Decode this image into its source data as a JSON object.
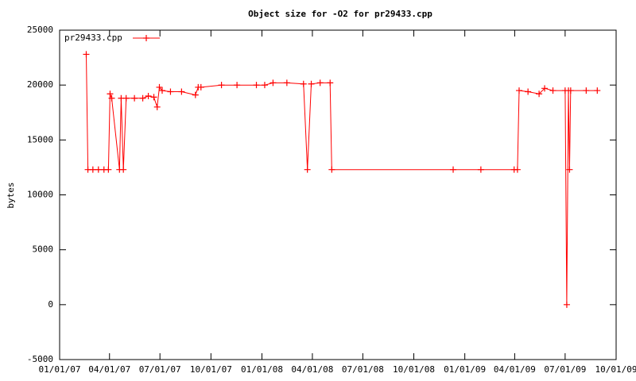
{
  "chart_data": {
    "type": "line",
    "title": "Object size for -O2 for pr29433.cpp",
    "y_label": "bytes",
    "legend": "top-left",
    "grid": false,
    "series": [
      {
        "name": "pr29433.cpp",
        "color": "#ff0000",
        "x": [
          "02/18/07",
          "02/21/07",
          "03/02/07",
          "03/12/07",
          "03/22/07",
          "03/30/07",
          "04/02/07",
          "04/05/07",
          "04/19/07",
          "04/22/07",
          "04/26/07",
          "05/01/07",
          "05/16/07",
          "05/31/07",
          "06/10/07",
          "06/20/07",
          "06/26/07",
          "06/30/07",
          "07/05/07",
          "07/20/07",
          "08/09/07",
          "09/03/07",
          "09/08/07",
          "09/13/07",
          "10/20/07",
          "11/17/07",
          "12/22/07",
          "01/06/08",
          "01/21/08",
          "02/15/08",
          "03/16/08",
          "03/23/08",
          "03/30/08",
          "04/15/08",
          "05/03/08",
          "05/06/08",
          "12/11/08",
          "01/30/09",
          "03/31/09",
          "04/06/09",
          "04/09/09",
          "04/25/09",
          "05/15/09",
          "05/25/09",
          "06/09/09",
          "07/01/09",
          "07/04/09",
          "07/07/09",
          "07/09/09",
          "07/11/09",
          "08/08/09",
          "08/28/09"
        ],
        "values": [
          22800,
          12300,
          12300,
          12300,
          12300,
          12300,
          19200,
          18800,
          12300,
          18800,
          12300,
          18800,
          18800,
          18800,
          19000,
          18900,
          18000,
          19800,
          19500,
          19400,
          19400,
          19100,
          19800,
          19800,
          20000,
          20000,
          20000,
          20000,
          20200,
          20200,
          20100,
          12300,
          20100,
          20200,
          20200,
          12300,
          12300,
          12300,
          12300,
          12300,
          19500,
          19400,
          19200,
          19700,
          19500,
          19500,
          0,
          19500,
          12300,
          19500,
          19500,
          19500
        ]
      }
    ],
    "xlim": [
      "01/01/07",
      "10/01/09"
    ],
    "xticks": [
      "01/01/07",
      "04/01/07",
      "07/01/07",
      "10/01/07",
      "01/01/08",
      "04/01/08",
      "07/01/08",
      "10/01/08",
      "01/01/09",
      "04/01/09",
      "07/01/09",
      "10/01/09"
    ],
    "ylim": [
      -5000,
      25000
    ],
    "yticks": [
      -5000,
      0,
      5000,
      10000,
      15000,
      20000,
      25000
    ]
  }
}
